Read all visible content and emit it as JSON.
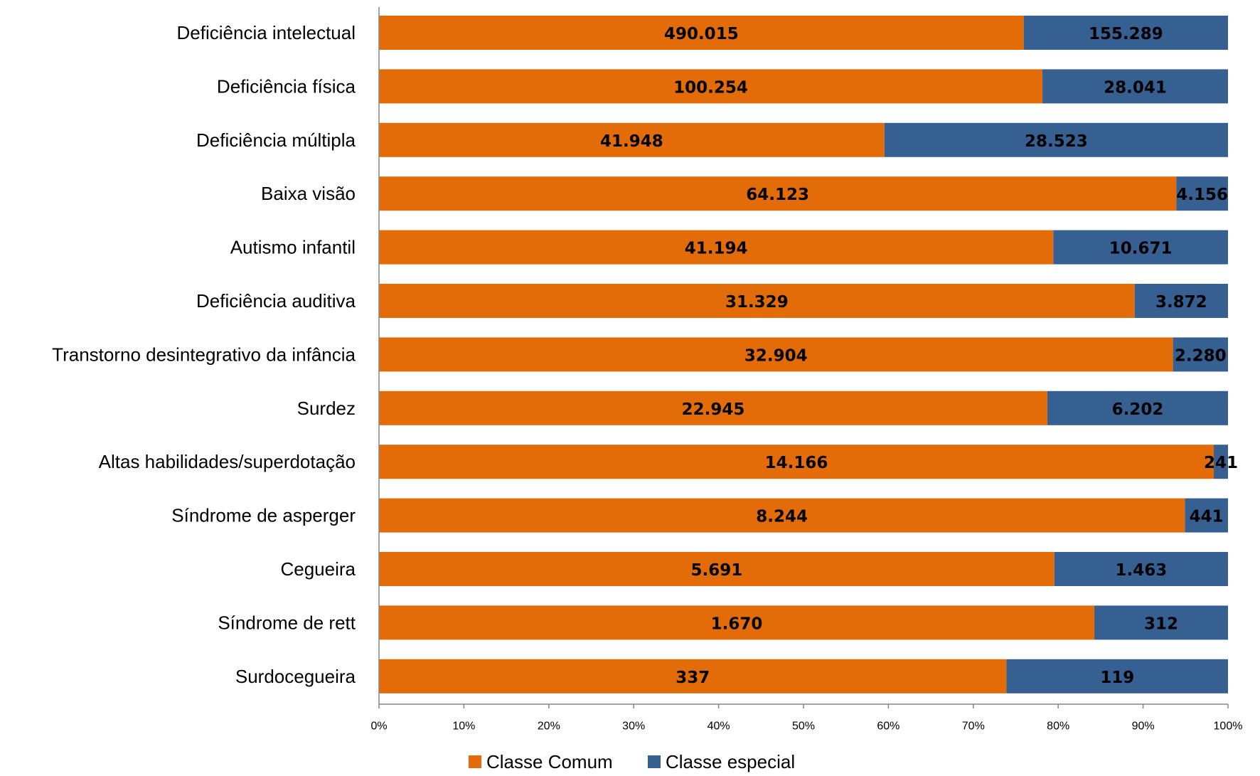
{
  "chart_data": {
    "type": "bar",
    "orientation": "horizontal",
    "stacking": "percent",
    "title": "",
    "xlabel": "",
    "ylabel": "",
    "xlim": [
      0,
      100
    ],
    "x_ticks": [
      "0%",
      "10%",
      "20%",
      "30%",
      "40%",
      "50%",
      "60%",
      "70%",
      "80%",
      "90%",
      "100%"
    ],
    "grid": false,
    "legend_position": "bottom",
    "categories": [
      "Deficiência intelectual",
      "Deficiência física",
      "Deficiência múltipla",
      "Baixa visão",
      "Autismo infantil",
      "Deficiência auditiva",
      "Transtorno desintegrativo da infância",
      "Surdez",
      "Altas habilidades/superdotação",
      "Síndrome de asperger",
      "Cegueira",
      "Síndrome de rett",
      "Surdocegueira"
    ],
    "series": [
      {
        "name": "Classe Comum",
        "color": "#E36C09",
        "values": [
          490015,
          100254,
          41948,
          64123,
          41194,
          31329,
          32904,
          22945,
          14166,
          8244,
          5691,
          1670,
          337
        ],
        "labels": [
          "490.015",
          "100.254",
          "41.948",
          "64.123",
          "41.194",
          "31.329",
          "32.904",
          "22.945",
          "14.166",
          "8.244",
          "5.691",
          "1.670",
          "337"
        ]
      },
      {
        "name": "Classe especial",
        "color": "#376092",
        "values": [
          155289,
          28041,
          28523,
          4156,
          10671,
          3872,
          2280,
          6202,
          241,
          441,
          1463,
          312,
          119
        ],
        "labels": [
          "155.289",
          "28.041",
          "28.523",
          "4.156",
          "10.671",
          "3.872",
          "2.280",
          "6.202",
          "241",
          "441",
          "1.463",
          "312",
          "119"
        ]
      }
    ]
  }
}
